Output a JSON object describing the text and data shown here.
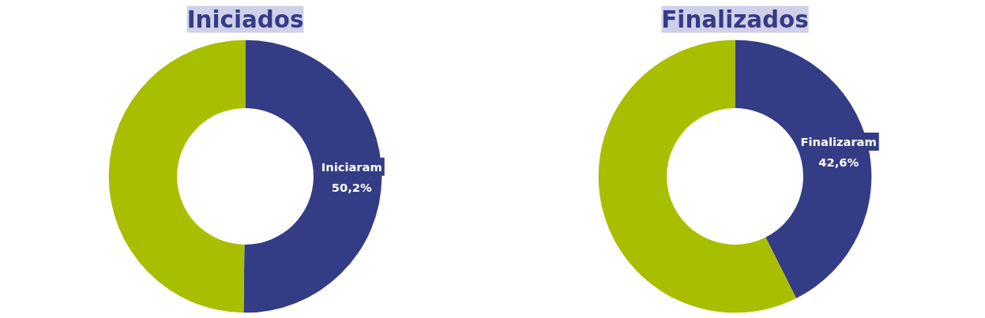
{
  "chart_data": [
    {
      "type": "donut",
      "title": "Iniciados",
      "categories": [
        "Iniciaram",
        null
      ],
      "values": [
        50.2,
        49.8
      ],
      "colors": [
        "#353c86",
        "#aabe00"
      ],
      "value_labels": [
        "50,2%",
        null
      ]
    },
    {
      "type": "donut",
      "title": "Finalizados",
      "categories": [
        "Finalizaram",
        null
      ],
      "values": [
        42.6,
        57.4
      ],
      "colors": [
        "#353c86",
        "#aabe00"
      ],
      "value_labels": [
        "42,6%",
        null
      ]
    }
  ]
}
